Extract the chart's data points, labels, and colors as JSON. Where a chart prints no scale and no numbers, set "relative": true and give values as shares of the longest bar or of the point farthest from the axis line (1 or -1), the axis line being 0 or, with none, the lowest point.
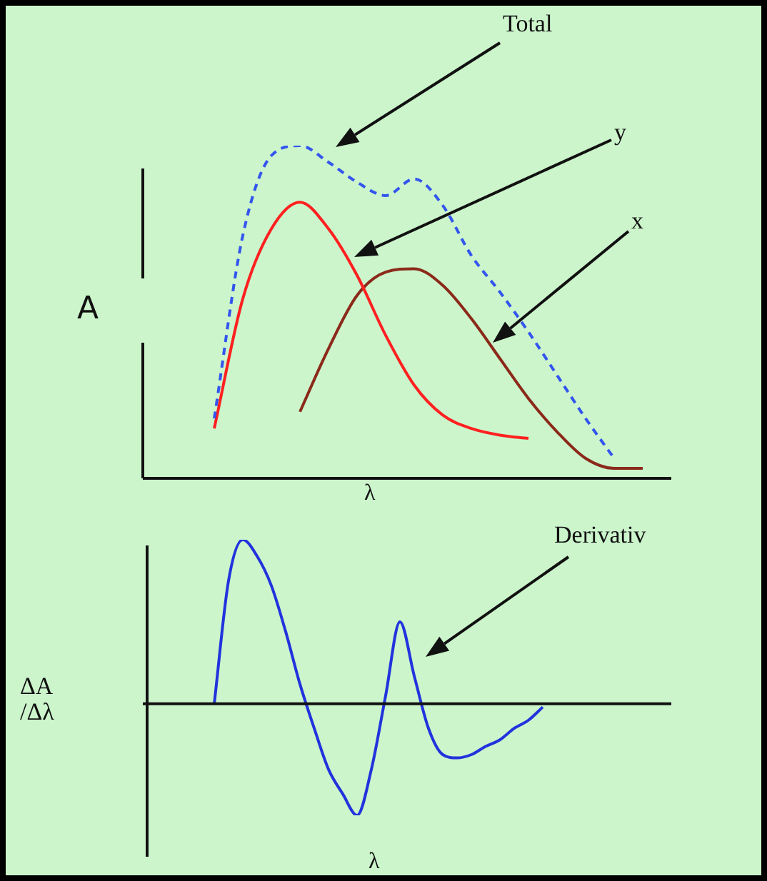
{
  "chart_data": [
    {
      "type": "line",
      "relative": true,
      "xlabel": "λ",
      "ylabel": "A",
      "legend": false,
      "marker": "none",
      "categories": [
        null,
        null,
        null,
        null,
        null,
        null,
        null,
        null,
        null,
        null,
        null,
        null,
        null,
        null,
        null,
        null,
        null,
        null,
        null
      ],
      "series": [
        {
          "name": "Total",
          "color": "#3355ee",
          "line_style": "dashed",
          "values": [
            null,
            null,
            0.18,
            0.73,
            0.97,
            1.0,
            0.95,
            0.89,
            0.85,
            0.9,
            0.82,
            0.67,
            0.56,
            0.44,
            0.31,
            0.18,
            0.06,
            null,
            null
          ]
        },
        {
          "name": "y",
          "color": "#ff2020",
          "line_style": "solid",
          "values": [
            null,
            null,
            0.15,
            0.54,
            0.75,
            0.83,
            0.75,
            0.61,
            0.43,
            0.28,
            0.19,
            0.15,
            0.13,
            0.12,
            null,
            null,
            null,
            null,
            null
          ]
        },
        {
          "name": "x",
          "color": "#8b2a1a",
          "line_style": "solid",
          "values": [
            null,
            null,
            null,
            null,
            null,
            0.2,
            0.39,
            0.55,
            0.62,
            0.63,
            0.58,
            0.48,
            0.36,
            0.24,
            0.14,
            0.06,
            0.03,
            0.03,
            null
          ]
        }
      ]
    },
    {
      "type": "line",
      "relative": true,
      "xlabel": "λ",
      "ylabel": "ΔA\n/Δλ",
      "legend": false,
      "marker": "none",
      "categories": [
        null,
        null,
        null,
        null,
        null,
        null,
        null,
        null,
        null,
        null,
        null,
        null,
        null,
        null,
        null,
        null,
        null,
        null,
        null,
        null,
        null,
        null,
        null,
        null,
        null,
        null,
        null,
        null,
        null,
        null,
        null,
        null,
        null,
        null,
        null,
        null,
        null
      ],
      "series": [
        {
          "name": "Derivativ",
          "color": "#2233dd",
          "line_style": "solid",
          "values": [
            null,
            null,
            null,
            null,
            0,
            0.75,
            1.0,
            0.9,
            0.72,
            0.44,
            0.12,
            -0.15,
            -0.4,
            -0.55,
            -0.68,
            -0.4,
            0.05,
            0.5,
            0.17,
            -0.15,
            -0.31,
            -0.33,
            -0.31,
            -0.26,
            -0.22,
            -0.15,
            -0.1,
            -0.02,
            null,
            null,
            null,
            null,
            null,
            null,
            null,
            null,
            null
          ]
        }
      ]
    }
  ]
}
